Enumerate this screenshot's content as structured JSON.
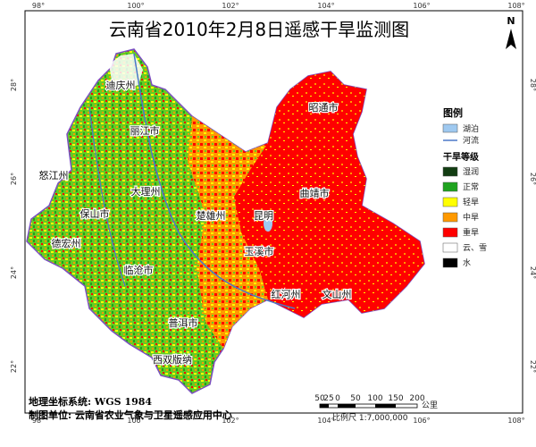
{
  "title": "云南省2010年2月8日遥感干旱监测图",
  "north_arrow": "N",
  "longitude_labels": [
    "98°",
    "100°",
    "102°",
    "104°",
    "106°",
    "108°"
  ],
  "latitude_labels": [
    "28°",
    "26°",
    "24°",
    "22°"
  ],
  "places": [
    "迪庆州",
    "丽江市",
    "昭通市",
    "怒江州",
    "大理州",
    "曲靖市",
    "保山市",
    "楚雄州",
    "昆明",
    "德宏州",
    "玉溪市",
    "临沧市",
    "红河州",
    "文山州",
    "普洱市",
    "西双版纳"
  ],
  "legend": {
    "title": "图例",
    "features": [
      {
        "label": "湖泊",
        "color": "#9fc9f0"
      },
      {
        "label": "河流",
        "color": "#4a78c8"
      }
    ],
    "drought_title": "干旱等级",
    "levels": [
      {
        "label": "湿润",
        "color": "#123d12"
      },
      {
        "label": "正常",
        "color": "#1fa31f"
      },
      {
        "label": "轻旱",
        "color": "#ffff00"
      },
      {
        "label": "中旱",
        "color": "#ff9900"
      },
      {
        "label": "重旱",
        "color": "#ff0000"
      },
      {
        "label": "云、雪",
        "color": "#ffffff"
      },
      {
        "label": "水",
        "color": "#000000"
      }
    ]
  },
  "scale_bar": {
    "ticks": [
      "50",
      "25",
      "0",
      "50",
      "100",
      "150",
      "200"
    ],
    "unit": "公里",
    "ratio": "比例尺 1:7,000,000"
  },
  "footer": [
    "地理坐标系统: WGS 1984",
    "制图单位: 云南省农业气象与卫星遥感应用中心"
  ]
}
